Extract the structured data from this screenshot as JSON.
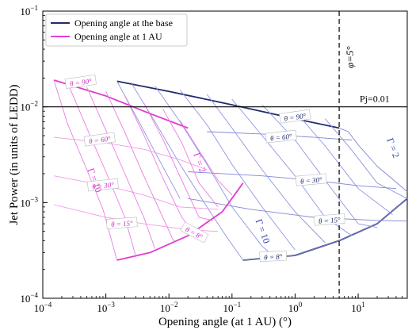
{
  "chart_data": {
    "type": "line",
    "xscale": "log",
    "yscale": "log",
    "xlim": [
      0.0001,
      60
    ],
    "ylim": [
      0.0001,
      0.1
    ],
    "xlabel": "Opening angle (at 1 AU) (°)",
    "ylabel": "Jet Power (in units of LEDD)",
    "x_ticks": [
      {
        "value": 0.0001,
        "base": "10",
        "exp": "−4"
      },
      {
        "value": 0.001,
        "base": "10",
        "exp": "−3"
      },
      {
        "value": 0.01,
        "base": "10",
        "exp": "−2"
      },
      {
        "value": 0.1,
        "base": "10",
        "exp": "−1"
      },
      {
        "value": 1,
        "base": "10",
        "exp": "0"
      },
      {
        "value": 10,
        "base": "10",
        "exp": "1"
      }
    ],
    "y_ticks": [
      {
        "value": 0.0001,
        "base": "10",
        "exp": "−4"
      },
      {
        "value": 0.001,
        "base": "10",
        "exp": "−3"
      },
      {
        "value": 0.01,
        "base": "10",
        "exp": "−2"
      },
      {
        "value": 0.1,
        "base": "10",
        "exp": "−1"
      }
    ],
    "legend": {
      "position": "top-left",
      "entries": [
        {
          "label": "Opening angle at the base",
          "color": "#1f2a6b"
        },
        {
          "label": "Opening angle at 1 AU",
          "color": "#e83ed8"
        }
      ]
    },
    "reference_lines": {
      "horizontal": {
        "y": 0.01,
        "label": "Pj=0.01",
        "color": "#000000"
      },
      "vertical": {
        "x": 5,
        "label": "φ=5°",
        "color": "#000000",
        "style": "dashed"
      }
    },
    "series": [
      {
        "group": "base",
        "kind": "gamma-edge",
        "color": "#1f2a6b",
        "points": [
          [
            0.0015,
            0.0185
          ],
          [
            0.01,
            0.0145
          ],
          [
            0.1,
            0.0105
          ],
          [
            1,
            0.0075
          ],
          [
            5,
            0.006
          ]
        ]
      },
      {
        "group": "base",
        "kind": "gamma-edge",
        "color": "#1f2a6b",
        "points": [
          [
            0.15,
            0.00025
          ],
          [
            1,
            0.00028
          ],
          [
            5,
            0.0004
          ],
          [
            20,
            0.0006
          ],
          [
            60,
            0.0011
          ]
        ]
      },
      {
        "group": "base",
        "kind": "theta",
        "color": "#7f86d9",
        "points": [
          [
            5,
            0.006
          ],
          [
            7,
            0.0055
          ],
          [
            10,
            0.004
          ],
          [
            20,
            0.0024
          ],
          [
            60,
            0.0013
          ]
        ]
      },
      {
        "group": "base",
        "kind": "theta",
        "color": "#7f86d9",
        "points": [
          [
            0.04,
            0.0055
          ],
          [
            0.3,
            0.0052
          ],
          [
            2,
            0.0048
          ],
          [
            5,
            0.0046
          ],
          [
            8,
            0.0045
          ]
        ]
      },
      {
        "group": "base",
        "kind": "theta",
        "color": "#7f86d9",
        "points": [
          [
            0.02,
            0.0021
          ],
          [
            0.3,
            0.0019
          ],
          [
            2,
            0.0017
          ],
          [
            10,
            0.0015
          ],
          [
            40,
            0.0014
          ]
        ]
      },
      {
        "group": "base",
        "kind": "theta",
        "color": "#7f86d9",
        "points": [
          [
            0.02,
            0.0011
          ],
          [
            0.2,
            0.00085
          ],
          [
            2,
            0.0007
          ],
          [
            20,
            0.00065
          ],
          [
            60,
            0.00064
          ]
        ]
      },
      {
        "group": "base",
        "kind": "theta",
        "color": "#7f86d9",
        "points": [
          [
            0.15,
            0.00025
          ],
          [
            1,
            0.00028
          ],
          [
            5,
            0.0004
          ],
          [
            20,
            0.0006
          ],
          [
            60,
            0.0011
          ]
        ]
      },
      {
        "group": "base",
        "kind": "gamma-iso",
        "color": "#8f95e0",
        "points": [
          [
            0.0015,
            0.0185
          ],
          [
            0.003,
            0.008
          ],
          [
            0.007,
            0.0028
          ],
          [
            0.015,
            0.0011
          ]
        ]
      },
      {
        "group": "base",
        "kind": "gamma-iso",
        "color": "#8f95e0",
        "points": [
          [
            0.0025,
            0.018
          ],
          [
            0.006,
            0.007
          ],
          [
            0.015,
            0.0025
          ],
          [
            0.04,
            0.0009
          ],
          [
            0.08,
            0.00045
          ],
          [
            0.15,
            0.00025
          ]
        ]
      },
      {
        "group": "base",
        "kind": "gamma-iso",
        "color": "#8f95e0",
        "points": [
          [
            0.006,
            0.0165
          ],
          [
            0.015,
            0.007
          ],
          [
            0.04,
            0.0025
          ],
          [
            0.1,
            0.0009
          ],
          [
            0.3,
            0.00035
          ],
          [
            0.5,
            0.00026
          ]
        ]
      },
      {
        "group": "base",
        "kind": "gamma-iso",
        "color": "#8f95e0",
        "points": [
          [
            0.015,
            0.015
          ],
          [
            0.04,
            0.0065
          ],
          [
            0.1,
            0.0025
          ],
          [
            0.3,
            0.0009
          ],
          [
            1,
            0.00032
          ]
        ]
      },
      {
        "group": "base",
        "kind": "gamma-iso",
        "color": "#8f95e0",
        "points": [
          [
            0.04,
            0.0135
          ],
          [
            0.1,
            0.006
          ],
          [
            0.3,
            0.0022
          ],
          [
            1,
            0.0008
          ],
          [
            3,
            0.00038
          ]
        ]
      },
      {
        "group": "base",
        "kind": "gamma-iso",
        "color": "#8f95e0",
        "points": [
          [
            0.1,
            0.012
          ],
          [
            0.3,
            0.005
          ],
          [
            1,
            0.0019
          ],
          [
            3,
            0.0007
          ],
          [
            8,
            0.00045
          ]
        ]
      },
      {
        "group": "base",
        "kind": "gamma-iso",
        "color": "#8f95e0",
        "points": [
          [
            0.3,
            0.0105
          ],
          [
            1,
            0.0045
          ],
          [
            3,
            0.0017
          ],
          [
            10,
            0.0006
          ],
          [
            20,
            0.00055
          ]
        ]
      },
      {
        "group": "base",
        "kind": "gamma-iso",
        "color": "#8f95e0",
        "points": [
          [
            1,
            0.009
          ],
          [
            3,
            0.0039
          ],
          [
            10,
            0.0014
          ],
          [
            35,
            0.00075
          ]
        ]
      },
      {
        "group": "base",
        "kind": "gamma-iso",
        "color": "#8f95e0",
        "points": [
          [
            3,
            0.0075
          ],
          [
            8,
            0.0035
          ],
          [
            20,
            0.0016
          ],
          [
            60,
            0.0011
          ]
        ]
      },
      {
        "group": "au",
        "kind": "gamma-edge",
        "color": "#e03ccf",
        "points": [
          [
            0.00015,
            0.019
          ],
          [
            0.001,
            0.013
          ],
          [
            0.005,
            0.0085
          ],
          [
            0.02,
            0.006
          ]
        ]
      },
      {
        "group": "au",
        "kind": "gamma-edge",
        "color": "#e03ccf",
        "points": [
          [
            0.0015,
            0.00025
          ],
          [
            0.005,
            0.0003
          ],
          [
            0.02,
            0.00045
          ],
          [
            0.07,
            0.0008
          ],
          [
            0.15,
            0.0016
          ]
        ]
      },
      {
        "group": "au",
        "kind": "theta",
        "color": "#f19ae9",
        "points": [
          [
            0.00015,
            0.0048
          ],
          [
            0.001,
            0.0042
          ],
          [
            0.004,
            0.0036
          ],
          [
            0.015,
            0.0028
          ],
          [
            0.04,
            0.0022
          ]
        ]
      },
      {
        "group": "au",
        "kind": "theta",
        "color": "#f19ae9",
        "points": [
          [
            0.00015,
            0.0019
          ],
          [
            0.001,
            0.0015
          ],
          [
            0.004,
            0.0012
          ],
          [
            0.015,
            0.0009
          ],
          [
            0.06,
            0.00085
          ]
        ]
      },
      {
        "group": "au",
        "kind": "theta",
        "color": "#f19ae9",
        "points": [
          [
            0.00015,
            0.00095
          ],
          [
            0.001,
            0.0007
          ],
          [
            0.004,
            0.0006
          ],
          [
            0.02,
            0.00052
          ],
          [
            0.06,
            0.0005
          ]
        ]
      },
      {
        "group": "au",
        "kind": "gamma-iso",
        "color": "#ec7de2",
        "points": [
          [
            0.00015,
            0.019
          ],
          [
            0.00025,
            0.0065
          ],
          [
            0.0005,
            0.0022
          ],
          [
            0.0009,
            0.00085
          ],
          [
            0.0015,
            0.00025
          ]
        ]
      },
      {
        "group": "au",
        "kind": "gamma-iso",
        "color": "#ec7de2",
        "points": [
          [
            0.00025,
            0.0175
          ],
          [
            0.0005,
            0.006
          ],
          [
            0.001,
            0.0021
          ],
          [
            0.002,
            0.0007
          ],
          [
            0.003,
            0.00027
          ]
        ]
      },
      {
        "group": "au",
        "kind": "gamma-iso",
        "color": "#ec7de2",
        "points": [
          [
            0.0005,
            0.016
          ],
          [
            0.001,
            0.0057
          ],
          [
            0.002,
            0.002
          ],
          [
            0.004,
            0.0007
          ],
          [
            0.006,
            0.00033
          ]
        ]
      },
      {
        "group": "au",
        "kind": "gamma-iso",
        "color": "#ec7de2",
        "points": [
          [
            0.001,
            0.0145
          ],
          [
            0.002,
            0.0054
          ],
          [
            0.004,
            0.0019
          ],
          [
            0.008,
            0.0007
          ],
          [
            0.012,
            0.00039
          ]
        ]
      },
      {
        "group": "au",
        "kind": "gamma-iso",
        "color": "#ec7de2",
        "points": [
          [
            0.002,
            0.013
          ],
          [
            0.004,
            0.0051
          ],
          [
            0.008,
            0.0018
          ],
          [
            0.016,
            0.0007
          ],
          [
            0.025,
            0.00048
          ]
        ]
      },
      {
        "group": "au",
        "kind": "gamma-iso",
        "color": "#ec7de2",
        "points": [
          [
            0.004,
            0.011
          ],
          [
            0.008,
            0.0046
          ],
          [
            0.016,
            0.0017
          ],
          [
            0.03,
            0.0007
          ],
          [
            0.05,
            0.00065
          ]
        ]
      },
      {
        "group": "au",
        "kind": "gamma-iso",
        "color": "#ec7de2",
        "points": [
          [
            0.008,
            0.0095
          ],
          [
            0.016,
            0.0042
          ],
          [
            0.03,
            0.0016
          ],
          [
            0.06,
            0.0009
          ]
        ]
      },
      {
        "group": "au",
        "kind": "gamma-iso",
        "color": "#ec7de2",
        "points": [
          [
            0.015,
            0.0072
          ],
          [
            0.03,
            0.0035
          ],
          [
            0.06,
            0.0017
          ],
          [
            0.1,
            0.0012
          ]
        ]
      }
    ],
    "annotations": [
      {
        "text": "θ = 90°",
        "x": 1.0,
        "y": 0.0078,
        "color": "#1f2a6b",
        "rotate": -8
      },
      {
        "text": "θ = 60°",
        "x": 0.6,
        "y": 0.0048,
        "color": "#1f2a6b",
        "rotate": -6
      },
      {
        "text": "θ = 30°",
        "x": 1.8,
        "y": 0.0017,
        "color": "#1f2a6b",
        "rotate": -5
      },
      {
        "text": "θ = 15°",
        "x": 3.5,
        "y": 0.00065,
        "color": "#1f2a6b",
        "rotate": -4
      },
      {
        "text": "θ = 8°",
        "x": 0.45,
        "y": 0.00027,
        "color": "#1f2a6b",
        "rotate": -3
      },
      {
        "text": "θ = 90°",
        "x": 0.0004,
        "y": 0.018,
        "color": "#cc2fc0",
        "rotate": -8
      },
      {
        "text": "θ = 60°",
        "x": 0.0008,
        "y": 0.0045,
        "color": "#cc2fc0",
        "rotate": -8
      },
      {
        "text": "θ = 30°",
        "x": 0.0009,
        "y": 0.0015,
        "color": "#cc2fc0",
        "rotate": -6
      },
      {
        "text": "θ = 15°",
        "x": 0.0018,
        "y": 0.0006,
        "color": "#cc2fc0",
        "rotate": -4
      },
      {
        "text": "θ = 8°",
        "x": 0.025,
        "y": 0.00048,
        "color": "#cc2fc0",
        "rotate": 28
      },
      {
        "text": "Γ = 2",
        "x": 0.03,
        "y": 0.0026,
        "color": "#e03ccf",
        "rotate": 70,
        "size": 12
      },
      {
        "text": "Γ = 10",
        "x": 0.00065,
        "y": 0.0017,
        "color": "#e03ccf",
        "rotate": 70,
        "size": 12
      },
      {
        "text": "Γ = 2",
        "x": 35,
        "y": 0.0037,
        "color": "#2a3bb0",
        "rotate": 70,
        "size": 12
      },
      {
        "text": "Γ = 10",
        "x": 0.3,
        "y": 0.0005,
        "color": "#2a3bb0",
        "rotate": 70,
        "size": 12
      }
    ]
  }
}
